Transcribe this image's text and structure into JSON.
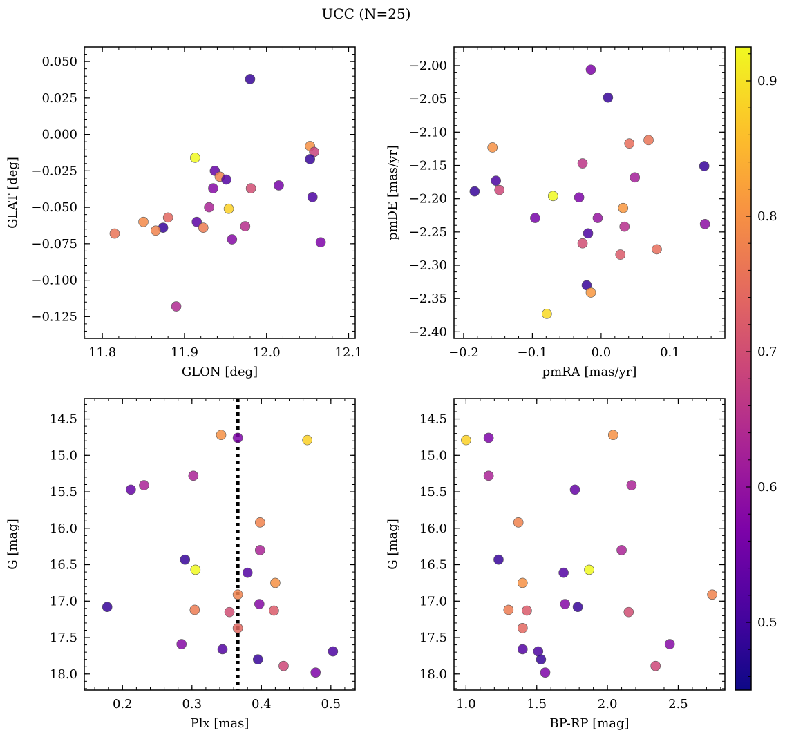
{
  "title": "UCC (N=25)",
  "colorbar": {
    "cmap": "plasma",
    "range": [
      0.45,
      0.925
    ],
    "ticks": [
      "0.5",
      "0.6",
      "0.7",
      "0.8",
      "0.9"
    ],
    "tick_values": [
      0.5,
      0.6,
      0.7,
      0.8,
      0.9
    ]
  },
  "chart_data": [
    {
      "type": "scatter",
      "id": "glon_glat",
      "xlabel": "GLON [deg]",
      "ylabel": "GLAT [deg]",
      "xlim": [
        11.778,
        12.108
      ],
      "ylim": [
        -0.14,
        0.06
      ],
      "y_inverted": false,
      "xticks": [
        "11.8",
        "11.9",
        "12.0",
        "12.1"
      ],
      "xtick_values": [
        11.8,
        11.9,
        12.0,
        12.1
      ],
      "yticks": [
        "0.050",
        "0.025",
        "0.000",
        "−0.025",
        "−0.050",
        "−0.075",
        "−0.100",
        "−0.125"
      ],
      "ytick_values": [
        0.05,
        0.025,
        0.0,
        -0.025,
        -0.05,
        -0.075,
        -0.1,
        -0.125
      ],
      "points": [
        {
          "x": 11.98,
          "y": 0.038,
          "c": 0.49
        },
        {
          "x": 12.053,
          "y": -0.008,
          "c": 0.8
        },
        {
          "x": 12.058,
          "y": -0.012,
          "c": 0.68
        },
        {
          "x": 11.913,
          "y": -0.016,
          "c": 0.93
        },
        {
          "x": 12.053,
          "y": -0.017,
          "c": 0.49
        },
        {
          "x": 11.937,
          "y": -0.025,
          "c": 0.54
        },
        {
          "x": 11.943,
          "y": -0.029,
          "c": 0.78
        },
        {
          "x": 11.951,
          "y": -0.031,
          "c": 0.52
        },
        {
          "x": 11.935,
          "y": -0.037,
          "c": 0.58
        },
        {
          "x": 11.981,
          "y": -0.037,
          "c": 0.7
        },
        {
          "x": 12.015,
          "y": -0.035,
          "c": 0.56
        },
        {
          "x": 12.056,
          "y": -0.043,
          "c": 0.51
        },
        {
          "x": 11.93,
          "y": -0.05,
          "c": 0.63
        },
        {
          "x": 11.954,
          "y": -0.051,
          "c": 0.88
        },
        {
          "x": 11.88,
          "y": -0.057,
          "c": 0.74
        },
        {
          "x": 11.85,
          "y": -0.06,
          "c": 0.79
        },
        {
          "x": 11.915,
          "y": -0.06,
          "c": 0.53
        },
        {
          "x": 11.874,
          "y": -0.064,
          "c": 0.49
        },
        {
          "x": 11.974,
          "y": -0.063,
          "c": 0.65
        },
        {
          "x": 11.923,
          "y": -0.064,
          "c": 0.77
        },
        {
          "x": 11.865,
          "y": -0.066,
          "c": 0.78
        },
        {
          "x": 11.815,
          "y": -0.068,
          "c": 0.76
        },
        {
          "x": 11.958,
          "y": -0.072,
          "c": 0.58
        },
        {
          "x": 12.066,
          "y": -0.074,
          "c": 0.57
        },
        {
          "x": 11.89,
          "y": -0.118,
          "c": 0.64
        }
      ]
    },
    {
      "type": "scatter",
      "id": "pmra_pmde",
      "xlabel": "pmRA [mas/yr]",
      "ylabel": "pmDE [mas/yr]",
      "xlim": [
        -0.214,
        0.18
      ],
      "ylim": [
        -2.41,
        -1.972
      ],
      "y_inverted": false,
      "xticks": [
        "−0.2",
        "−0.1",
        "0.0",
        "0.1"
      ],
      "xtick_values": [
        -0.2,
        -0.1,
        0.0,
        0.1
      ],
      "yticks": [
        "−2.00",
        "−2.05",
        "−2.10",
        "−2.15",
        "−2.20",
        "−2.25",
        "−2.30",
        "−2.35",
        "−2.40"
      ],
      "ytick_values": [
        -2.0,
        -2.05,
        -2.1,
        -2.15,
        -2.2,
        -2.25,
        -2.3,
        -2.35,
        -2.4
      ],
      "points": [
        {
          "x": -0.015,
          "y": -2.006,
          "c": 0.57
        },
        {
          "x": 0.01,
          "y": -2.048,
          "c": 0.49
        },
        {
          "x": 0.069,
          "y": -2.112,
          "c": 0.76
        },
        {
          "x": -0.158,
          "y": -2.123,
          "c": 0.8
        },
        {
          "x": 0.041,
          "y": -2.117,
          "c": 0.75
        },
        {
          "x": -0.027,
          "y": -2.147,
          "c": 0.66
        },
        {
          "x": 0.15,
          "y": -2.151,
          "c": 0.49
        },
        {
          "x": -0.153,
          "y": -2.173,
          "c": 0.51
        },
        {
          "x": 0.049,
          "y": -2.168,
          "c": 0.62
        },
        {
          "x": -0.148,
          "y": -2.187,
          "c": 0.69
        },
        {
          "x": -0.184,
          "y": -2.189,
          "c": 0.49
        },
        {
          "x": -0.07,
          "y": -2.196,
          "c": 0.93
        },
        {
          "x": -0.032,
          "y": -2.198,
          "c": 0.57
        },
        {
          "x": 0.032,
          "y": -2.214,
          "c": 0.81
        },
        {
          "x": -0.096,
          "y": -2.229,
          "c": 0.56
        },
        {
          "x": -0.005,
          "y": -2.229,
          "c": 0.6
        },
        {
          "x": 0.034,
          "y": -2.242,
          "c": 0.65
        },
        {
          "x": 0.151,
          "y": -2.238,
          "c": 0.59
        },
        {
          "x": -0.019,
          "y": -2.252,
          "c": 0.51
        },
        {
          "x": -0.027,
          "y": -2.267,
          "c": 0.7
        },
        {
          "x": 0.081,
          "y": -2.276,
          "c": 0.75
        },
        {
          "x": 0.028,
          "y": -2.284,
          "c": 0.72
        },
        {
          "x": -0.021,
          "y": -2.33,
          "c": 0.49
        },
        {
          "x": -0.015,
          "y": -2.341,
          "c": 0.81
        },
        {
          "x": -0.079,
          "y": -2.373,
          "c": 0.89
        }
      ]
    },
    {
      "type": "scatter",
      "id": "plx_g",
      "xlabel": "Plx [mas]",
      "ylabel": "G [mag]",
      "xlim": [
        0.145,
        0.535
      ],
      "ylim": [
        14.22,
        18.22
      ],
      "y_inverted": true,
      "vline": {
        "x": 0.366,
        "style": "dotted"
      },
      "xticks": [
        "0.2",
        "0.3",
        "0.4",
        "0.5"
      ],
      "xtick_values": [
        0.2,
        0.3,
        0.4,
        0.5
      ],
      "yticks": [
        "14.5",
        "15.0",
        "15.5",
        "16.0",
        "16.5",
        "17.0",
        "17.5",
        "18.0"
      ],
      "ytick_values": [
        14.5,
        15.0,
        15.5,
        16.0,
        16.5,
        17.0,
        17.5,
        18.0
      ],
      "points": [
        {
          "x": 0.342,
          "y": 14.72,
          "c": 0.8
        },
        {
          "x": 0.366,
          "y": 14.76,
          "c": 0.57
        },
        {
          "x": 0.466,
          "y": 14.79,
          "c": 0.88
        },
        {
          "x": 0.302,
          "y": 15.28,
          "c": 0.63
        },
        {
          "x": 0.231,
          "y": 15.41,
          "c": 0.63
        },
        {
          "x": 0.212,
          "y": 15.47,
          "c": 0.54
        },
        {
          "x": 0.398,
          "y": 15.92,
          "c": 0.78
        },
        {
          "x": 0.398,
          "y": 16.3,
          "c": 0.63
        },
        {
          "x": 0.29,
          "y": 16.43,
          "c": 0.49
        },
        {
          "x": 0.305,
          "y": 16.57,
          "c": 0.93
        },
        {
          "x": 0.38,
          "y": 16.61,
          "c": 0.52
        },
        {
          "x": 0.42,
          "y": 16.75,
          "c": 0.8
        },
        {
          "x": 0.366,
          "y": 16.91,
          "c": 0.78
        },
        {
          "x": 0.397,
          "y": 17.04,
          "c": 0.58
        },
        {
          "x": 0.178,
          "y": 17.08,
          "c": 0.49
        },
        {
          "x": 0.304,
          "y": 17.12,
          "c": 0.77
        },
        {
          "x": 0.418,
          "y": 17.13,
          "c": 0.72
        },
        {
          "x": 0.354,
          "y": 17.15,
          "c": 0.7
        },
        {
          "x": 0.366,
          "y": 17.37,
          "c": 0.74
        },
        {
          "x": 0.285,
          "y": 17.59,
          "c": 0.58
        },
        {
          "x": 0.344,
          "y": 17.66,
          "c": 0.52
        },
        {
          "x": 0.503,
          "y": 17.69,
          "c": 0.51
        },
        {
          "x": 0.395,
          "y": 17.8,
          "c": 0.49
        },
        {
          "x": 0.432,
          "y": 17.89,
          "c": 0.69
        },
        {
          "x": 0.478,
          "y": 17.98,
          "c": 0.57
        }
      ]
    },
    {
      "type": "scatter",
      "id": "bprp_g",
      "xlabel": "BP-RP [mag]",
      "ylabel": "G [mag]",
      "xlim": [
        0.915,
        2.83
      ],
      "ylim": [
        14.22,
        18.22
      ],
      "y_inverted": true,
      "xticks": [
        "1.0",
        "1.5",
        "2.0",
        "2.5"
      ],
      "xtick_values": [
        1.0,
        1.5,
        2.0,
        2.5
      ],
      "yticks": [
        "14.5",
        "15.0",
        "15.5",
        "16.0",
        "16.5",
        "17.0",
        "17.5",
        "18.0"
      ],
      "ytick_values": [
        14.5,
        15.0,
        15.5,
        16.0,
        16.5,
        17.0,
        17.5,
        18.0
      ],
      "points": [
        {
          "x": 2.04,
          "y": 14.72,
          "c": 0.8
        },
        {
          "x": 1.16,
          "y": 14.76,
          "c": 0.57
        },
        {
          "x": 1.0,
          "y": 14.79,
          "c": 0.88
        },
        {
          "x": 1.16,
          "y": 15.28,
          "c": 0.63
        },
        {
          "x": 2.17,
          "y": 15.41,
          "c": 0.63
        },
        {
          "x": 1.77,
          "y": 15.47,
          "c": 0.54
        },
        {
          "x": 1.37,
          "y": 15.92,
          "c": 0.78
        },
        {
          "x": 2.1,
          "y": 16.3,
          "c": 0.63
        },
        {
          "x": 1.23,
          "y": 16.43,
          "c": 0.49
        },
        {
          "x": 1.87,
          "y": 16.57,
          "c": 0.93
        },
        {
          "x": 1.69,
          "y": 16.61,
          "c": 0.52
        },
        {
          "x": 1.4,
          "y": 16.75,
          "c": 0.8
        },
        {
          "x": 2.74,
          "y": 16.91,
          "c": 0.78
        },
        {
          "x": 1.7,
          "y": 17.04,
          "c": 0.58
        },
        {
          "x": 1.79,
          "y": 17.08,
          "c": 0.49
        },
        {
          "x": 1.3,
          "y": 17.12,
          "c": 0.77
        },
        {
          "x": 1.43,
          "y": 17.13,
          "c": 0.72
        },
        {
          "x": 2.15,
          "y": 17.15,
          "c": 0.7
        },
        {
          "x": 1.4,
          "y": 17.37,
          "c": 0.74
        },
        {
          "x": 2.44,
          "y": 17.59,
          "c": 0.58
        },
        {
          "x": 1.4,
          "y": 17.66,
          "c": 0.52
        },
        {
          "x": 1.51,
          "y": 17.69,
          "c": 0.51
        },
        {
          "x": 1.53,
          "y": 17.8,
          "c": 0.49
        },
        {
          "x": 2.34,
          "y": 17.89,
          "c": 0.69
        },
        {
          "x": 1.56,
          "y": 17.98,
          "c": 0.57
        }
      ]
    }
  ]
}
